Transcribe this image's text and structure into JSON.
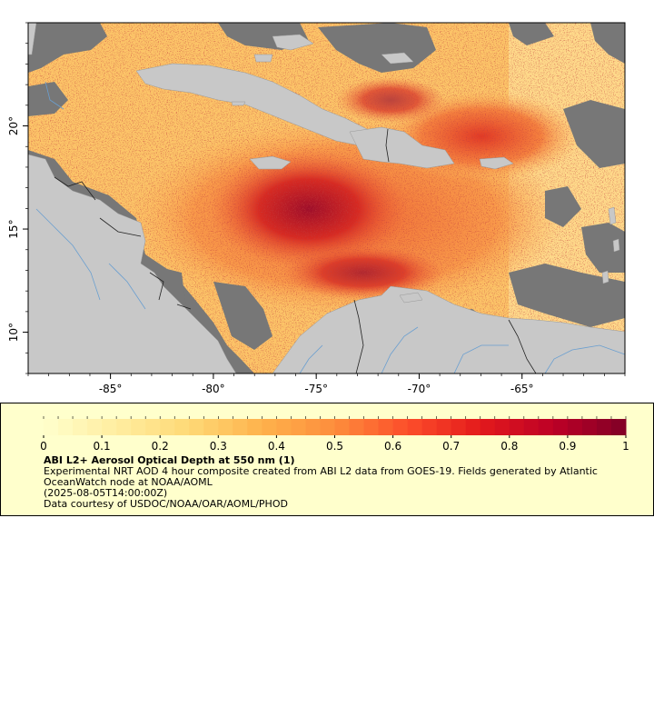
{
  "map": {
    "x_ticks": [
      {
        "value": -85,
        "label": "-85°"
      },
      {
        "value": -80,
        "label": "-80°"
      },
      {
        "value": -75,
        "label": "-75°"
      },
      {
        "value": -70,
        "label": "-70°"
      },
      {
        "value": -65,
        "label": "-65°"
      }
    ],
    "y_ticks": [
      {
        "value": 20,
        "label": "20°"
      },
      {
        "value": 15,
        "label": "15°"
      },
      {
        "value": 10,
        "label": "10°"
      }
    ],
    "lon_range": [
      -89,
      -60
    ],
    "lat_range": [
      8,
      25
    ],
    "colors": {
      "land": "#c8c8c8",
      "missing": "#777777",
      "rivers": "#6a9fd0",
      "borders": "#222222"
    }
  },
  "legend": {
    "title": "ABI L2+ Aerosol Optical Depth at 550 nm (1)",
    "line1": "Experimental NRT AOD 4 hour composite created from ABI L2 data from GOES-19. Fields generated by Atlantic OceanWatch node at NOAA/AOML",
    "line2": "(2025-08-05T14:00:00Z)",
    "line3": "Data courtesy of USDOC/NOAA/OAR/AOML/PHOD",
    "colorbar": {
      "min": 0,
      "max": 1,
      "ticks": [
        "0",
        "0.1",
        "0.2",
        "0.3",
        "0.4",
        "0.5",
        "0.6",
        "0.7",
        "0.8",
        "0.9",
        "1"
      ],
      "colormap": [
        "#ffffcc",
        "#ffeda0",
        "#fed976",
        "#feb24c",
        "#fd8d3c",
        "#fc4e2a",
        "#e31a1c",
        "#bd0026",
        "#800026"
      ]
    }
  }
}
